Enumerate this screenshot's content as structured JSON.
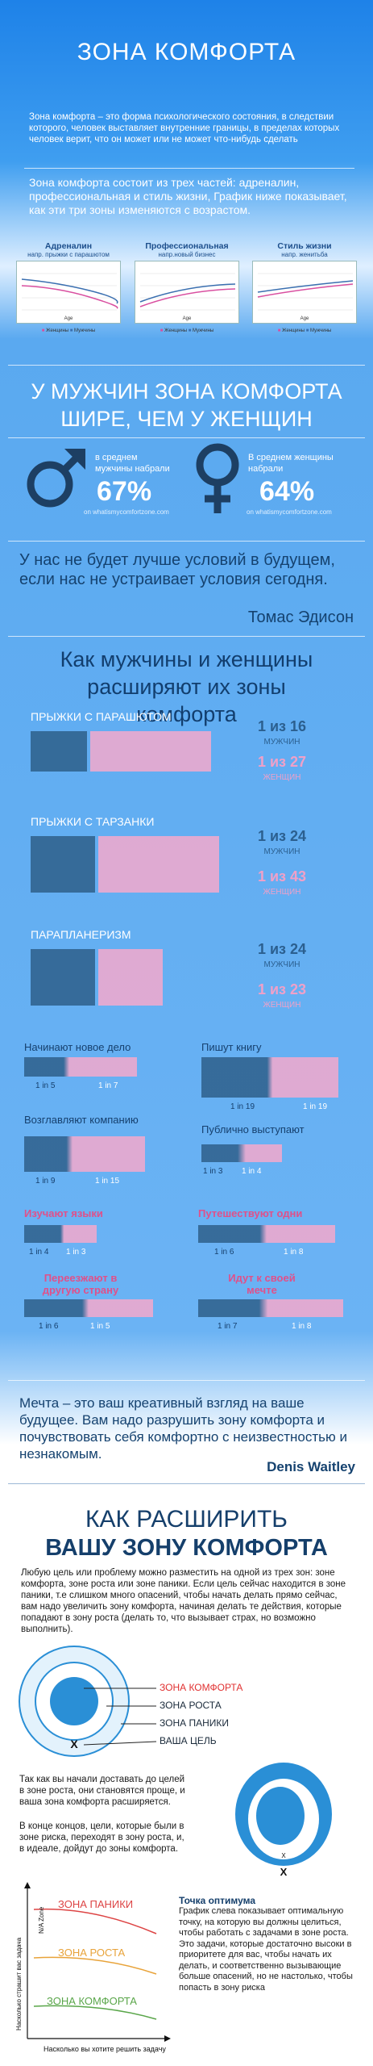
{
  "header": {
    "title": "ЗОНА КОМФОРТА",
    "intro": "Зона комфорта – это форма психологического состояния, в следствии которого, человек выставляет внутренние границы, в пределах которых человек верит, что он может или не может что-нибудь сделать",
    "intro2": "Зона комфорта состоит из трех частей: адреналин, профессиональная и стиль жизни, График ниже показывает, как эти три зоны изменяются с возрастом."
  },
  "charts": [
    {
      "title": "Адреналин",
      "subtitle": "напр. прыжки с парашютом",
      "axis": "Age"
    },
    {
      "title": "Профессиональная",
      "subtitle": "напр.новый бизнес",
      "axis": "Age"
    },
    {
      "title": "Стиль жизни",
      "subtitle": "напр. женитьба",
      "axis": "Age"
    }
  ],
  "chart_legend": {
    "women": "Женщины",
    "men": "Мужчины"
  },
  "colors": {
    "men": "#2e5f8a",
    "women": "#f4a9cc",
    "accent_red": "#e03030",
    "dark_blue": "#153f6b"
  },
  "men_section": {
    "title": "У МУЖЧИН ЗОНА КОМФОРТА ШИРЕ, ЧЕМ У ЖЕНЩИН",
    "men_text": "в среднем мужчины набрали",
    "men_value": "67%",
    "women_text": "В среднем женщины набрали",
    "women_value": "64%",
    "source": "on whatismycomfortzone.com",
    "male_icon": "male-symbol-icon",
    "female_icon": "female-symbol-icon"
  },
  "quote1": {
    "text": "У нас не будет лучше условий в будущем, если нас не устраивает условия сегодня.",
    "author": "Томас Эдисон"
  },
  "expand": {
    "title": "Как мужчины и женщины расширяют их зоны комфорта",
    "activities": [
      {
        "label": "ПРЫЖКИ С ПАРАШЮТОМ",
        "men": "1 из 16",
        "men_sub": "МУЖЧИН",
        "women": "1 из 27",
        "women_sub": "ЖЕНЩИН"
      },
      {
        "label": "ПРЫЖКИ С ТАРЗАНКИ",
        "men": "1 из 24",
        "men_sub": "МУЖЧИН",
        "women": "1 из 43",
        "women_sub": "ЖЕНЩИН"
      },
      {
        "label": "ПАРАПЛАНЕРИЗМ",
        "men": "1 из 24",
        "men_sub": "МУЖЧИН",
        "women": "1 из 23",
        "women_sub": "ЖЕНЩИН"
      }
    ],
    "grid": [
      {
        "label": "Начинают новое дело",
        "men": "1 in 5",
        "women": "1 in 7"
      },
      {
        "label": "Пишут книгу",
        "men": "1 in 19",
        "women": "1 in 19"
      },
      {
        "label": "Возглавляют компанию",
        "men": "1 in 9",
        "women": "1 in 15"
      },
      {
        "label": "Публично выступают",
        "men": "1 in 3",
        "women": "1 in 4"
      },
      {
        "label": "Изучают языки",
        "men": "1 in 4",
        "women": "1 in 3"
      },
      {
        "label": "Путешествуют одни",
        "men": "1 in 6",
        "women": "1 in 8"
      },
      {
        "label": "Переезжают в другую страну",
        "men": "1 in 6",
        "women": "1 in 5"
      },
      {
        "label": "Идут к своей мечте",
        "men": "1 in 7",
        "women": "1 in 8"
      }
    ]
  },
  "quote2": {
    "text": "Мечта – это ваш креативный взгляд на ваше будущее. Вам надо разрушить зону комфорта и почувствовать себя комфортно с неизвестностью и незнакомым.",
    "author": "Denis Waitley"
  },
  "how": {
    "title1": "КАК РАСШИРИТЬ",
    "title2": "ВАШУ ЗОНУ КОМФОРТА",
    "text": "Любую цель или проблему можно разместить на одной из трех зон: зоне комфорта, зоне роста или зоне паники. Если цель сейчас находится в зоне паники, т.е слишком много опасений, чтобы начать делать прямо сейчас, вам надо увеличить зону комфорта, начиная делать те действия, которые попадают в зону роста (делать то, что вызывает страх, но возможно выполнить).",
    "zones": [
      "ЗОНА КОМФОРТА",
      "ЗОНА РОСТА",
      "ЗОНА ПАНИКИ",
      "ВАША ЦЕЛЬ"
    ],
    "mark": "X",
    "text2": "Так как вы начали доставать до целей в зоне роста, они становятся проще, и ваша зона комфорта расширяется.",
    "text3": "В конце концов, цели, которые были в зоне риска, переходят в зону роста, и, в идеале, дойдут до зоны комфорта.",
    "graph_zones": [
      "ЗОНА ПАНИКИ",
      "ЗОНА РОСТА",
      "ЗОНА КОМФОРТА"
    ],
    "y_axis": "Насколько страшит вас задача",
    "x_axis": "Насколько вы хотите решить задачу",
    "na_zone": "N/A Zone",
    "optimum_title": "Точка оптимума",
    "optimum_text": "График слева показывает оптимальную точку, на которую вы должны целиться, чтобы работать с задачами в зоне роста. Это задачи, которые достаточно высоки в приоритете для вас, чтобы начать их делать, и соответственно вызывающие больше опасений, но не настолько, чтобы попасть в зону риска"
  }
}
